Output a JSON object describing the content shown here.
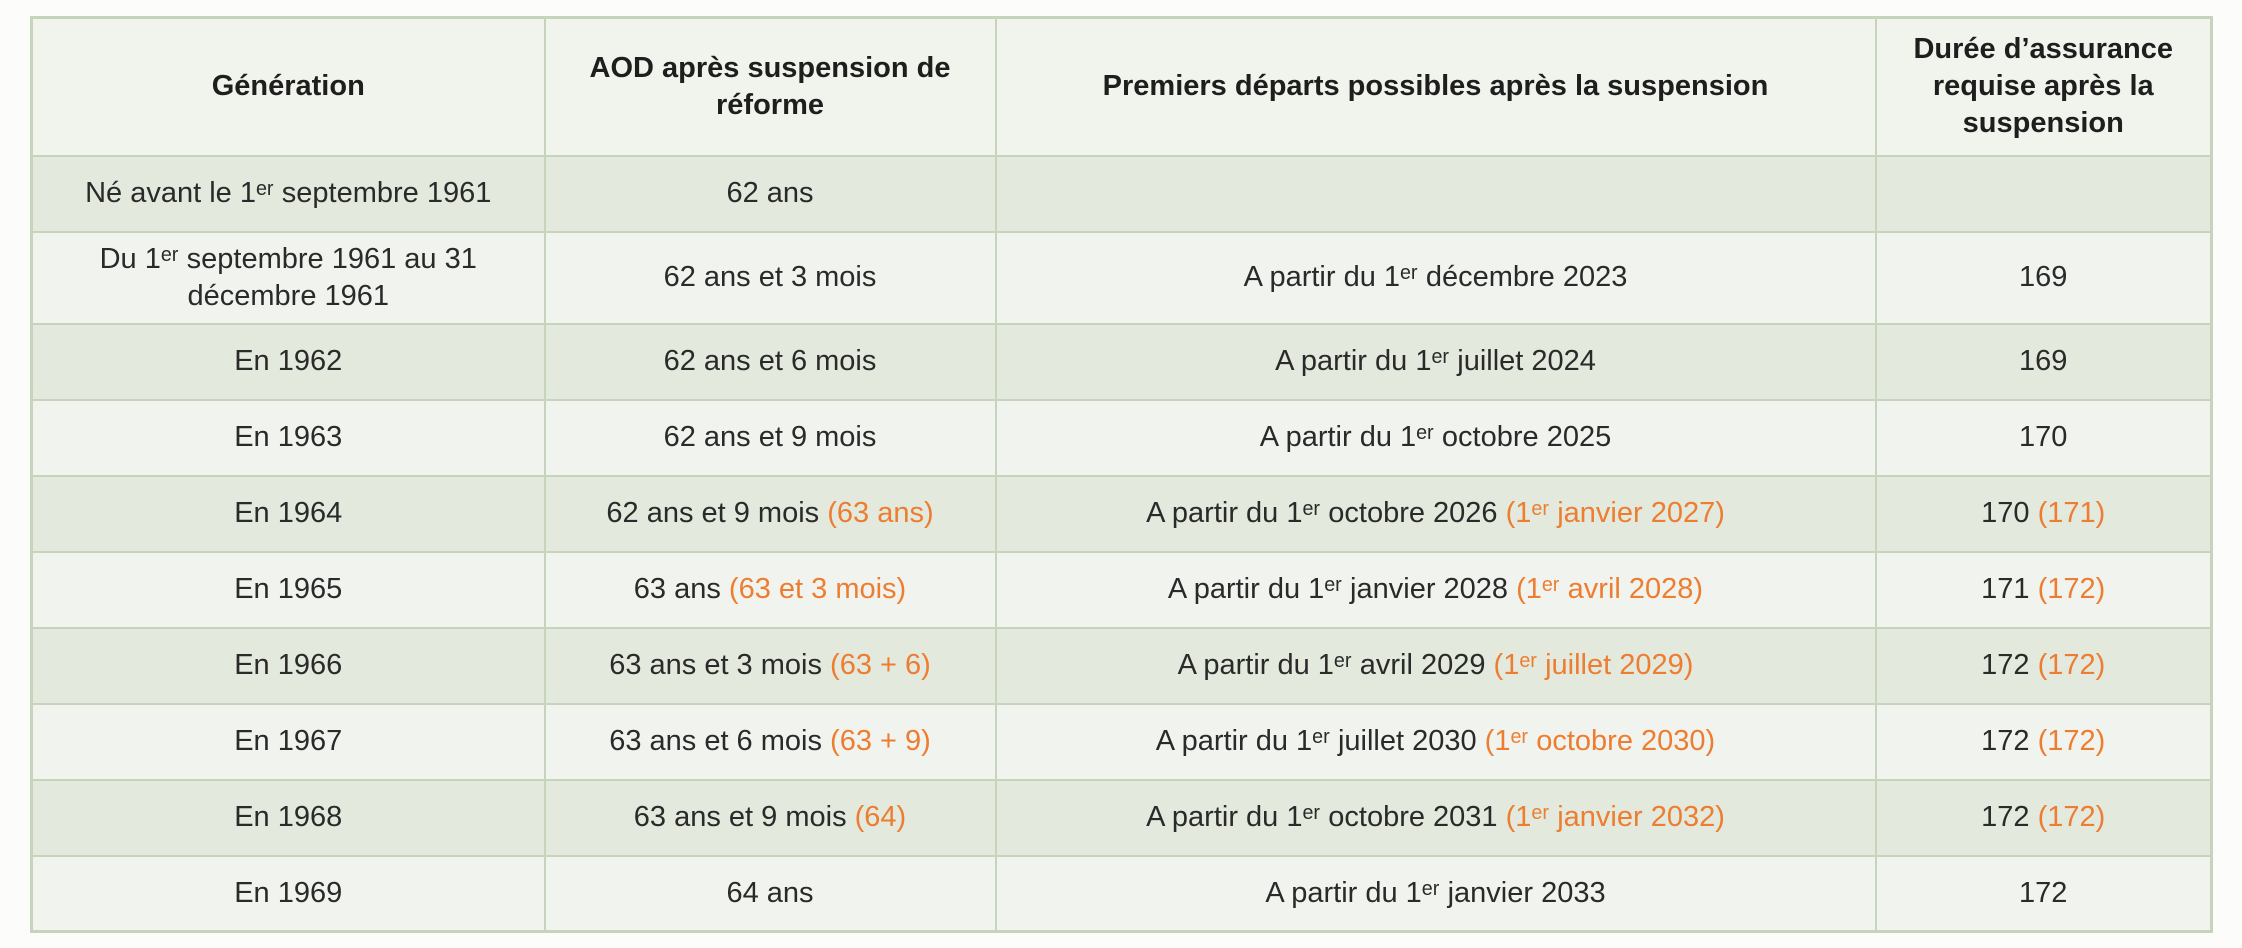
{
  "colors": {
    "page_bg": "#fcfcfa",
    "header_bg": "#f0f4ec",
    "row_dark": "#e3e9dd",
    "row_light": "#f1f4ee",
    "border": "#c6d4bb",
    "text": "#2a2a2a",
    "accent_orange": "#ed7d31"
  },
  "chart_data": {
    "type": "table",
    "columns": [
      "Génération",
      "AOD après suspension de réforme",
      "Premiers départs possibles après la suspension",
      "Durée d’assurance requise après la suspension"
    ],
    "rows": [
      {
        "generation": "Né avant le 1ᵉʳ septembre 1961",
        "aod": "62 ans",
        "aod_accent": "",
        "depart": "",
        "depart_accent": "",
        "duree": "",
        "duree_accent": ""
      },
      {
        "generation": "Du 1ᵉʳ septembre 1961 au 31 décembre 1961",
        "aod": "62 ans et 3 mois",
        "aod_accent": "",
        "depart": "A partir du 1ᵉʳ décembre 2023",
        "depart_accent": "",
        "duree": "169",
        "duree_accent": ""
      },
      {
        "generation": "En 1962",
        "aod": "62 ans et 6 mois",
        "aod_accent": "",
        "depart": "A partir du 1ᵉʳ juillet 2024",
        "depart_accent": "",
        "duree": "169",
        "duree_accent": ""
      },
      {
        "generation": "En 1963",
        "aod": "62 ans et 9 mois",
        "aod_accent": "",
        "depart": "A partir du 1ᵉʳ octobre 2025",
        "depart_accent": "",
        "duree": "170",
        "duree_accent": ""
      },
      {
        "generation": "En 1964",
        "aod": "62 ans et 9 mois",
        "aod_accent": "(63 ans)",
        "depart": "A partir du 1ᵉʳ octobre 2026",
        "depart_accent": "(1ᵉʳ janvier 2027)",
        "duree": "170",
        "duree_accent": "(171)"
      },
      {
        "generation": "En 1965",
        "aod": "63 ans",
        "aod_accent": "(63 et 3 mois)",
        "depart": "A partir du 1ᵉʳ janvier 2028",
        "depart_accent": "(1ᵉʳ avril 2028)",
        "duree": "171",
        "duree_accent": "(172)"
      },
      {
        "generation": "En 1966",
        "aod": "63 ans et 3 mois",
        "aod_accent": "(63 + 6)",
        "depart": "A partir du 1ᵉʳ avril 2029",
        "depart_accent": "(1ᵉʳ juillet 2029)",
        "duree": "172",
        "duree_accent": "(172)"
      },
      {
        "generation": "En 1967",
        "aod": "63 ans et 6 mois",
        "aod_accent": "(63 + 9)",
        "depart": "A partir du 1ᵉʳ juillet 2030",
        "depart_accent": "(1ᵉʳ octobre 2030)",
        "duree": "172",
        "duree_accent": "(172)"
      },
      {
        "generation": "En 1968",
        "aod": "63 ans et 9 mois",
        "aod_accent": "(64)",
        "depart": "A partir du 1ᵉʳ octobre 2031",
        "depart_accent": "(1ᵉʳ janvier 2032)",
        "duree": "172",
        "duree_accent": "(172)"
      },
      {
        "generation": "En 1969",
        "aod": "64 ans",
        "aod_accent": "",
        "depart": "A partir du 1ᵉʳ janvier 2033",
        "depart_accent": "",
        "duree": "172",
        "duree_accent": ""
      }
    ]
  }
}
